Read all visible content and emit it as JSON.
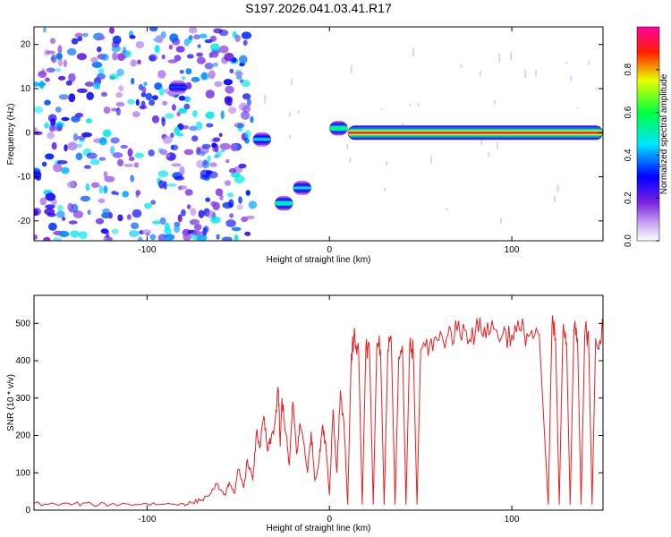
{
  "page": {
    "title": "S197.2026.041.03.41.R17"
  },
  "chart_data": [
    {
      "type": "heatmap",
      "title": "S197.2026.041.03.41.R17",
      "xlabel": "Height of straight line (km)",
      "ylabel": "Frequency (Hz)",
      "xlim": [
        -162,
        150
      ],
      "ylim": [
        -24.5,
        24
      ],
      "x_ticks": [
        -100,
        0,
        100
      ],
      "y_ticks": [
        -20,
        -10,
        0,
        10,
        20
      ],
      "colorbar": {
        "label": "Normalized spectral amplitude",
        "range": [
          0,
          1
        ],
        "ticks": [
          "0.0",
          "0.2",
          "0.4",
          "0.6",
          "0.8"
        ],
        "tick_values": [
          0,
          0.2,
          0.4,
          0.6,
          0.8
        ],
        "colors": [
          "#ffffff",
          "#8a2be2",
          "#0000ff",
          "#00ffff",
          "#00ff00",
          "#ffff00",
          "#ff0000",
          "#ff00ff"
        ]
      },
      "noise_region": {
        "x": [
          -162,
          -42
        ],
        "y": [
          -24.5,
          24
        ],
        "level": 0.18
      },
      "tracks": [
        {
          "x": [
            -42,
            -32
          ],
          "freq": -1.5,
          "amp": 0.45
        },
        {
          "x": [
            -30,
            -20
          ],
          "freq": -16,
          "amp": 0.55
        },
        {
          "x": [
            -20,
            -10
          ],
          "freq": -12.5,
          "amp": 0.45
        },
        {
          "x": [
            -88,
            -78
          ],
          "freq": 10.3,
          "amp": 0.35
        },
        {
          "x": [
            0,
            10
          ],
          "freq": 1,
          "amp": 0.6
        },
        {
          "x": [
            10,
            150
          ],
          "freq": 0,
          "amp": 0.95
        }
      ]
    },
    {
      "type": "line",
      "xlabel": "Height of straight line (km)",
      "ylabel": "SNR (10 * v/v)",
      "xlim": [
        -162,
        150
      ],
      "ylim": [
        0,
        575
      ],
      "x_ticks": [
        -100,
        0,
        100
      ],
      "y_ticks": [
        0,
        100,
        200,
        300,
        400,
        500
      ],
      "series": [
        {
          "color": "#e82020",
          "x": [
            -162,
            -150,
            -140,
            -130,
            -120,
            -110,
            -100,
            -90,
            -80,
            -75,
            -70,
            -65,
            -62,
            -60,
            -57,
            -55,
            -52,
            -50,
            -47,
            -45,
            -42,
            -40,
            -38,
            -36,
            -34,
            -32,
            -30,
            -28,
            -27,
            -26,
            -24,
            -22,
            -20,
            -18,
            -16,
            -14,
            -12,
            -10,
            -8,
            -6,
            -4,
            -2,
            0,
            2,
            4,
            6,
            8,
            10,
            12,
            14,
            16,
            18,
            20,
            22,
            24,
            26,
            28,
            30,
            32,
            34,
            36,
            38,
            40,
            42,
            44,
            46,
            48,
            50,
            55,
            60,
            65,
            70,
            75,
            80,
            85,
            90,
            95,
            100,
            105,
            110,
            115,
            120,
            122,
            124,
            126,
            128,
            130,
            132,
            134,
            136,
            138,
            140,
            142,
            144,
            146,
            148,
            150
          ],
          "y": [
            18,
            15,
            17,
            15,
            16,
            16,
            17,
            16,
            17,
            20,
            28,
            45,
            70,
            55,
            40,
            75,
            45,
            110,
            60,
            135,
            80,
            210,
            170,
            250,
            160,
            190,
            230,
            320,
            170,
            300,
            210,
            120,
            290,
            150,
            230,
            180,
            100,
            210,
            80,
            120,
            220,
            180,
            40,
            270,
            100,
            320,
            230,
            15,
            420,
            460,
            430,
            15,
            440,
            420,
            15,
            440,
            430,
            15,
            430,
            440,
            15,
            410,
            440,
            15,
            440,
            420,
            15,
            430,
            445,
            455,
            470,
            480,
            480,
            475,
            490,
            485,
            470,
            470,
            480,
            470,
            470,
            15,
            490,
            460,
            15,
            480,
            450,
            15,
            480,
            460,
            15,
            470,
            480,
            15,
            460,
            450,
            485
          ]
        }
      ]
    }
  ]
}
